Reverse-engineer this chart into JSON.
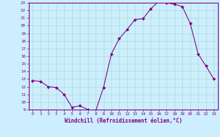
{
  "x": [
    0,
    1,
    2,
    3,
    4,
    5,
    6,
    7,
    8,
    9,
    10,
    11,
    12,
    13,
    14,
    15,
    16,
    17,
    18,
    19,
    20,
    21,
    22,
    23
  ],
  "y": [
    12.8,
    12.7,
    12.0,
    11.9,
    11.0,
    9.3,
    9.5,
    9.0,
    8.8,
    11.9,
    16.3,
    18.3,
    19.5,
    20.8,
    20.9,
    22.2,
    23.2,
    23.0,
    22.8,
    22.5,
    20.3,
    16.3,
    14.7,
    13.0
  ],
  "line_color": "#800080",
  "marker": "D",
  "marker_size": 2,
  "bg_color": "#cceeff",
  "grid_color": "#aaddcc",
  "spine_color": "#800080",
  "xlabel": "Windchill (Refroidissement éolien,°C)",
  "ylim": [
    9,
    23
  ],
  "xlim": [
    -0.5,
    23.5
  ],
  "yticks": [
    9,
    10,
    11,
    12,
    13,
    14,
    15,
    16,
    17,
    18,
    19,
    20,
    21,
    22,
    23
  ],
  "xticks": [
    0,
    1,
    2,
    3,
    4,
    5,
    6,
    7,
    8,
    9,
    10,
    11,
    12,
    13,
    14,
    15,
    16,
    17,
    18,
    19,
    20,
    21,
    22,
    23
  ]
}
